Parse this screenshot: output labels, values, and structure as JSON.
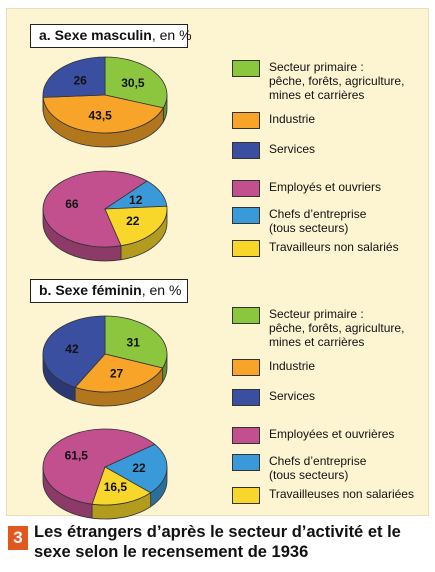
{
  "colors": {
    "secteur_primaire": "#8cc63f",
    "industrie": "#f7a428",
    "services": "#3b4fa0",
    "employes": "#c2508f",
    "chefs": "#3a9ad9",
    "travailleurs": "#f8d72a"
  },
  "sections": [
    {
      "title_bold": "a. Sexe masculin",
      "title_suffix": ", en %"
    },
    {
      "title_bold": "b. Sexe féminin",
      "title_suffix": ", en %"
    }
  ],
  "chart_data": [
    {
      "type": "pie",
      "group": "a. Sexe masculin",
      "labels": [
        "Secteur primaire : pêche, forêts, agriculture, mines et carrières",
        "Industrie",
        "Services"
      ],
      "values": [
        30.5,
        43.5,
        26
      ],
      "value_labels": [
        "30,5",
        "43,5",
        "26"
      ],
      "colors": [
        "#8cc63f",
        "#f7a428",
        "#3b4fa0"
      ],
      "legend": [
        "Secteur primaire :\npêche, forêts, agriculture,\nmines et carrières",
        "Industrie",
        "Services"
      ]
    },
    {
      "type": "pie",
      "group": "a. Sexe masculin",
      "labels": [
        "Employés et ouvriers",
        "Chefs d'entreprise (tous secteurs)",
        "Travailleurs non salariés"
      ],
      "values": [
        66,
        12,
        22
      ],
      "value_labels": [
        "66",
        "12",
        "22"
      ],
      "colors": [
        "#c2508f",
        "#3a9ad9",
        "#f8d72a"
      ],
      "legend": [
        "Employés et ouvriers",
        "Chefs d’entreprise\n(tous secteurs)",
        "Travailleurs non salariés"
      ]
    },
    {
      "type": "pie",
      "group": "b. Sexe féminin",
      "labels": [
        "Secteur primaire : pêche, forêts, agriculture, mines et carrières",
        "Industrie",
        "Services"
      ],
      "values": [
        31,
        27,
        42
      ],
      "value_labels": [
        "31",
        "27",
        "42"
      ],
      "colors": [
        "#8cc63f",
        "#f7a428",
        "#3b4fa0"
      ],
      "legend": [
        "Secteur primaire :\npêche, forêts, agriculture,\nmines et carrières",
        "Industrie",
        "Services"
      ]
    },
    {
      "type": "pie",
      "group": "b. Sexe féminin",
      "labels": [
        "Employées et ouvrières",
        "Chefs d'entreprise (tous secteurs)",
        "Travailleuses non salariées"
      ],
      "values": [
        61.5,
        22,
        16.5
      ],
      "value_labels": [
        "61,5",
        "22",
        "16,5"
      ],
      "colors": [
        "#c2508f",
        "#3a9ad9",
        "#f8d72a"
      ],
      "legend": [
        "Employées et ouvrières",
        "Chefs d’entreprise\n(tous secteurs)",
        "Travailleuses non salariées"
      ]
    }
  ],
  "caption": {
    "number": "3",
    "text": "Les étrangers d’après le secteur d’activité et le sexe selon le recensement de 1936"
  }
}
